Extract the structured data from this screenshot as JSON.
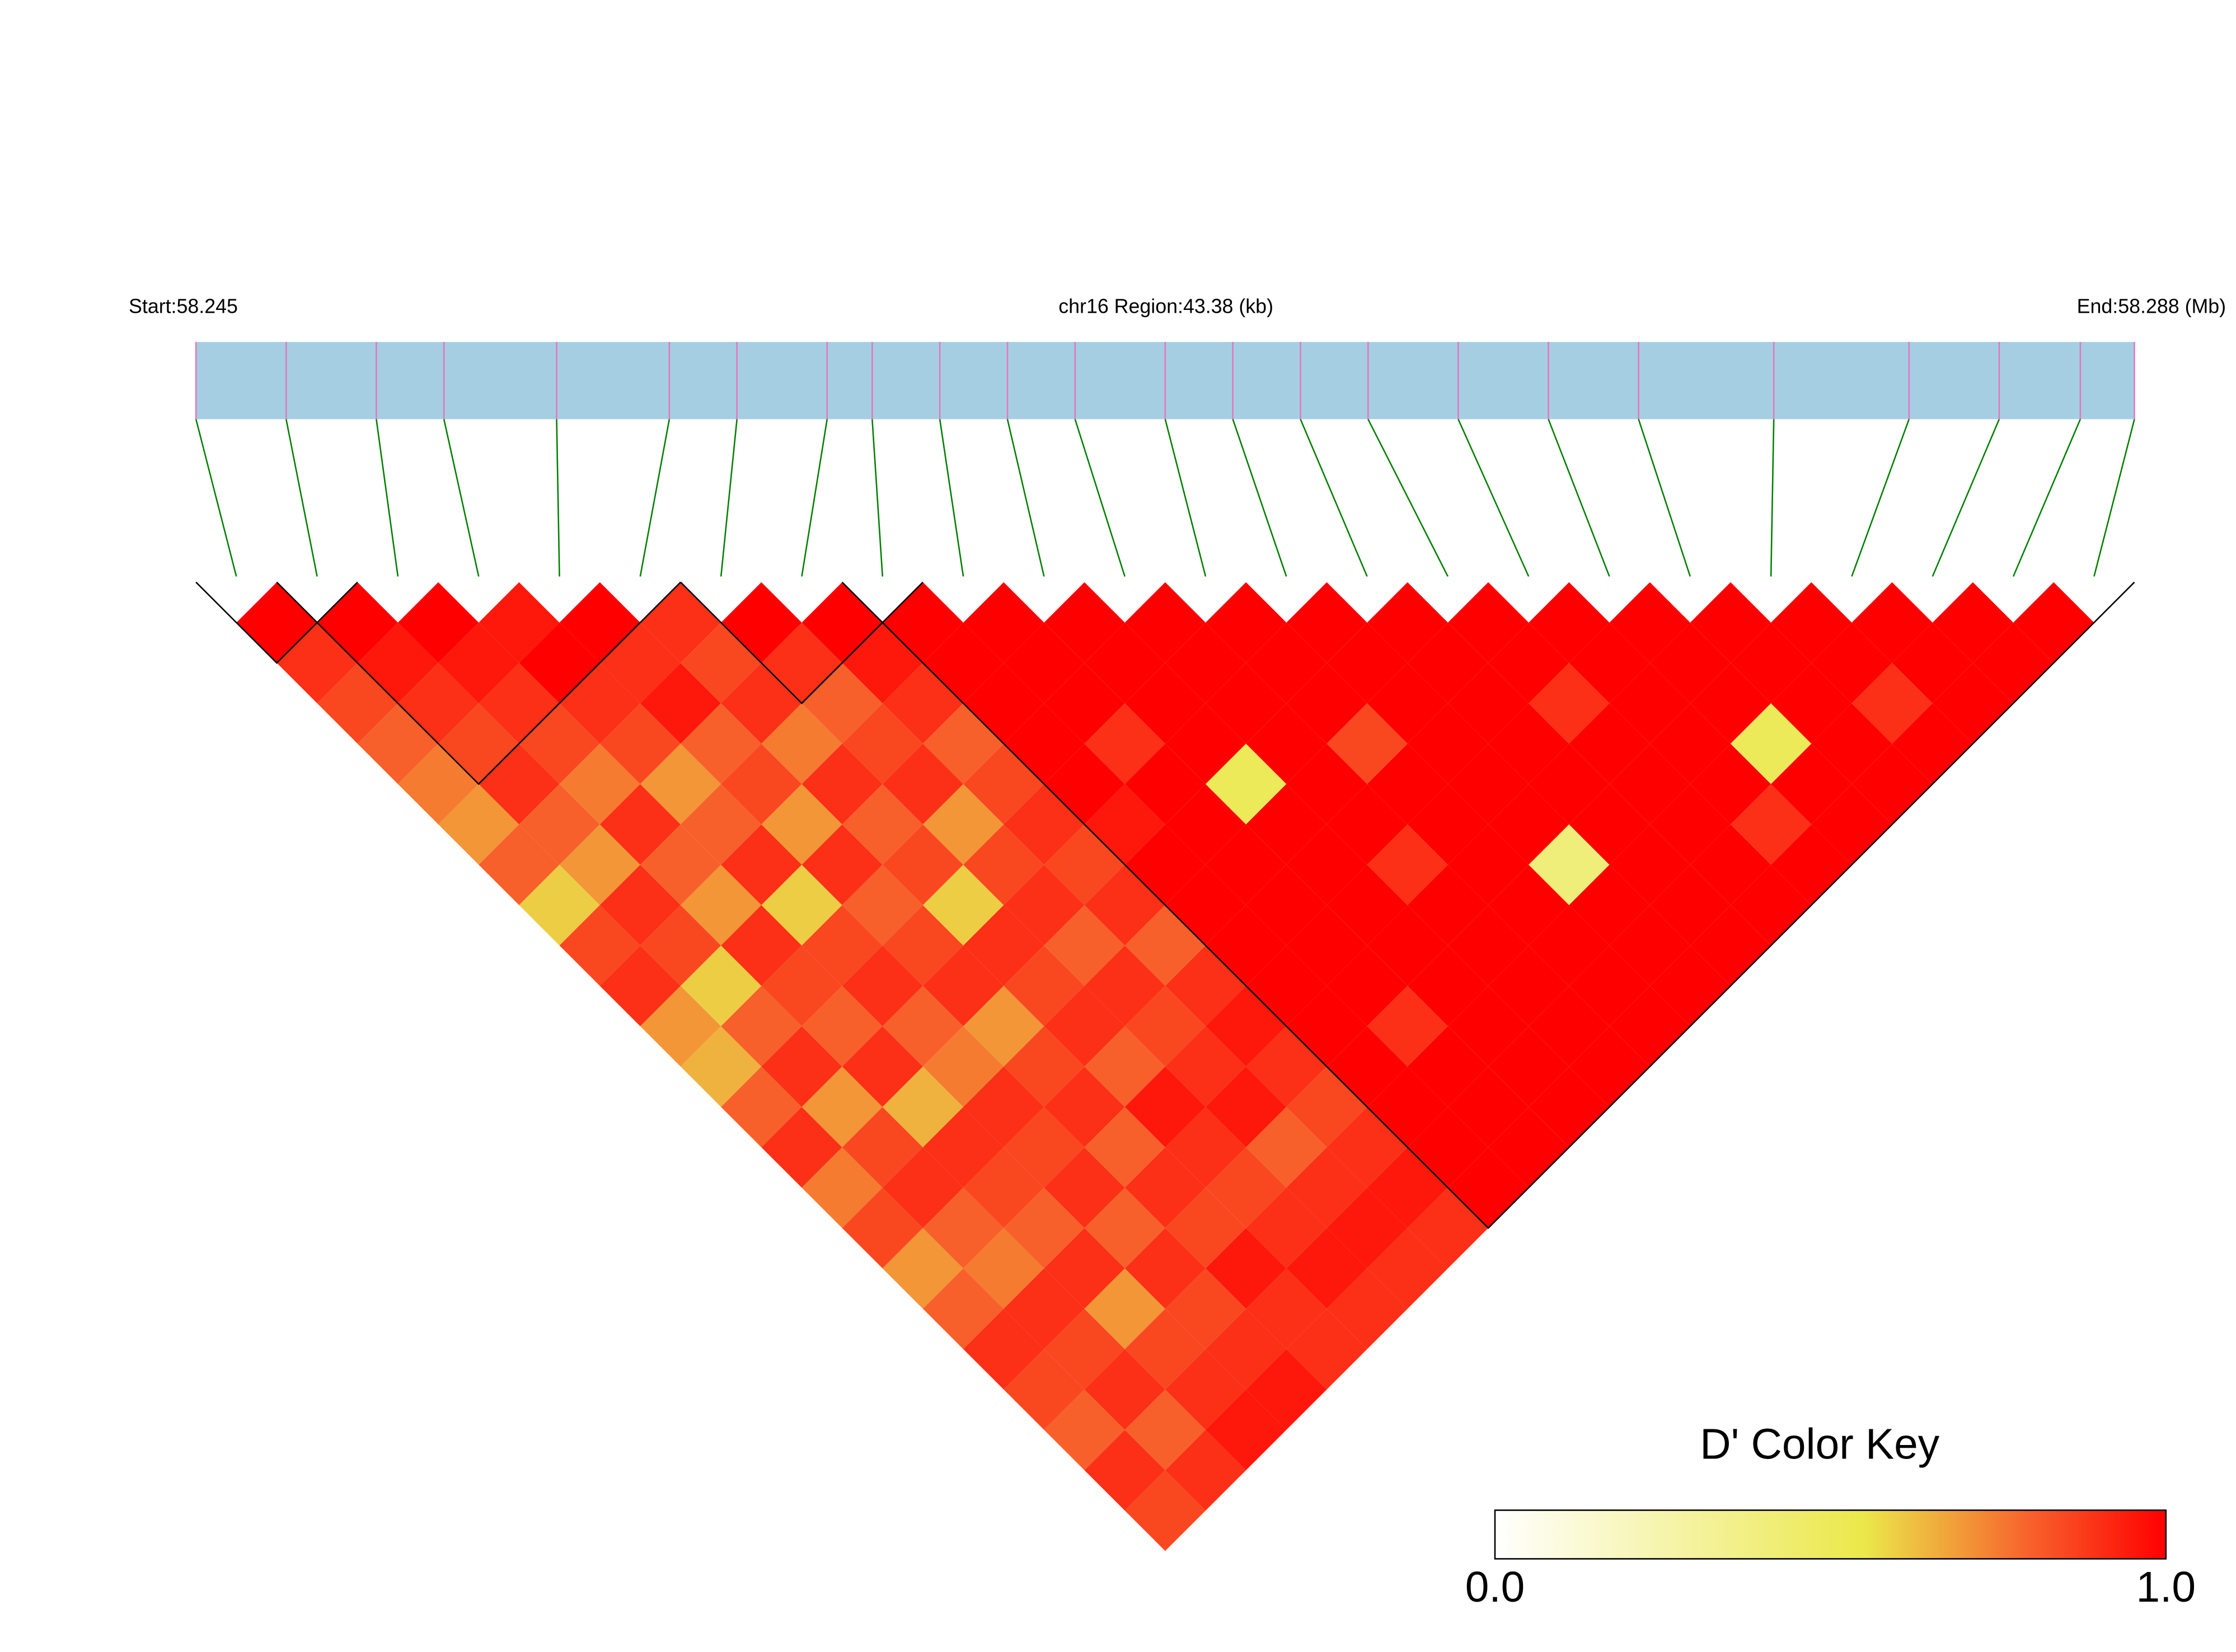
{
  "chart_data": {
    "type": "ld_heatmap",
    "start_label": "Start:58.245",
    "region_label": "chr16 Region:43.38 (kb)",
    "end_label": "End:58.288 (Mb)",
    "xlim": [
      58.245,
      58.288
    ],
    "snp_positions": [
      58.245,
      58.247,
      58.249,
      58.2505,
      58.253,
      58.2555,
      58.257,
      58.259,
      58.26,
      58.2615,
      58.263,
      58.2645,
      58.2665,
      58.268,
      58.2695,
      58.271,
      58.273,
      58.275,
      58.277,
      58.28,
      58.283,
      58.285,
      58.2868,
      58.288
    ],
    "values": [
      [
        1,
        0.9,
        0.85,
        0.8,
        0.75,
        0.7,
        0.8,
        0.6,
        0.85,
        0.9,
        0.7,
        0.65,
        0.8,
        0.9,
        0.75,
        0.85,
        0.7,
        0.8,
        0.9,
        0.85,
        0.8,
        0.9,
        0.85
      ],
      [
        1,
        0.95,
        0.9,
        0.85,
        0.9,
        0.8,
        0.7,
        0.9,
        0.85,
        0.6,
        0.8,
        0.9,
        0.7,
        0.85,
        0.9,
        0.8,
        0.75,
        0.9,
        0.85,
        0.9,
        0.8,
        0.9
      ],
      [
        1,
        0.95,
        0.9,
        0.85,
        0.75,
        0.9,
        0.8,
        0.7,
        0.9,
        0.85,
        0.8,
        0.9,
        0.65,
        0.9,
        0.85,
        0.8,
        0.9,
        0.7,
        0.85,
        0.9,
        0.95
      ],
      [
        0.95,
        1,
        0.9,
        0.85,
        0.7,
        0.8,
        0.9,
        0.6,
        0.85,
        0.9,
        0.8,
        0.75,
        0.9,
        0.85,
        0.9,
        0.8,
        0.9,
        0.85,
        0.9,
        0.95
      ],
      [
        1,
        0.9,
        0.95,
        0.8,
        0.85,
        0.7,
        0.9,
        0.8,
        0.85,
        0.9,
        0.7,
        0.85,
        0.9,
        0.8,
        0.9,
        0.85,
        0.95,
        0.9,
        0.9
      ],
      [
        0.9,
        0.85,
        0.9,
        0.75,
        0.9,
        0.8,
        0.85,
        0.6,
        0.9,
        0.85,
        0.9,
        0.8,
        0.95,
        0.9,
        0.85,
        0.9,
        0.95,
        0.9
      ],
      [
        1,
        0.9,
        0.8,
        0.85,
        0.9,
        0.7,
        0.85,
        0.9,
        0.8,
        0.9,
        0.85,
        0.9,
        0.95,
        0.8,
        0.9,
        0.95,
        0.9
      ],
      [
        1,
        0.95,
        0.9,
        0.8,
        0.85,
        0.9,
        0.85,
        0.9,
        0.8,
        0.9,
        0.95,
        0.9,
        0.85,
        0.9,
        0.95,
        0.9
      ],
      [
        1,
        1,
        1,
        1,
        1,
        0.95,
        1,
        1,
        1,
        1,
        1,
        1,
        1,
        1,
        1
      ],
      [
        1,
        1,
        1,
        0.9,
        1,
        1,
        1,
        1,
        1,
        1,
        0.9,
        1,
        1,
        1
      ],
      [
        1,
        1,
        1,
        1,
        0.5,
        1,
        1,
        1,
        1,
        1,
        1,
        1,
        1
      ],
      [
        1,
        1,
        1,
        1,
        1,
        1,
        0.9,
        1,
        1,
        1,
        1,
        1
      ],
      [
        1,
        1,
        1,
        0.85,
        1,
        1,
        1,
        1,
        1,
        1,
        1
      ],
      [
        1,
        1,
        1,
        1,
        1,
        1,
        0.4,
        1,
        1,
        1
      ],
      [
        1,
        1,
        1,
        1,
        1,
        1,
        1,
        1,
        1
      ],
      [
        1,
        1,
        0.9,
        1,
        1,
        1,
        1,
        1
      ],
      [
        1,
        1,
        1,
        1,
        1,
        0.9,
        1
      ],
      [
        1,
        1,
        1,
        0.5,
        1,
        1
      ],
      [
        1,
        1,
        1,
        1,
        1
      ],
      [
        1,
        1,
        0.9,
        1
      ],
      [
        1,
        1,
        1
      ],
      [
        1,
        1
      ],
      [
        1
      ]
    ],
    "blocks": [
      [
        0,
        1
      ],
      [
        1,
        5
      ],
      [
        6,
        8
      ],
      [
        8,
        23
      ]
    ],
    "colorscale": [
      [
        0,
        "#ffffff"
      ],
      [
        0.55,
        "#ebe84a"
      ],
      [
        0.8,
        "#f7602b"
      ],
      [
        1,
        "#ff0000"
      ]
    ],
    "colorbar_title": "D' Color Key",
    "colorbar_ticks": [
      {
        "value": 0,
        "label": "0.0"
      },
      {
        "value": 1,
        "label": "1.0"
      }
    ]
  }
}
